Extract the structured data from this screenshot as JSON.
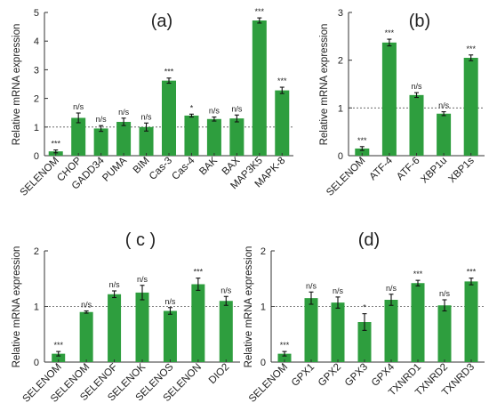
{
  "chart_data": [
    {
      "type": "bar",
      "panel_label": "(a)",
      "ylabel": "Relative mRNA expression",
      "ylim": [
        0,
        5
      ],
      "yticks": [
        0,
        1,
        2,
        3,
        4,
        5
      ],
      "reference_line": 1,
      "bar_color": "#2e9e3e",
      "categories": [
        "SELENOM",
        "CHOP",
        "GADD34",
        "PUMA",
        "BIM",
        "Cas-3",
        "Cas-4",
        "BAK",
        "BAX",
        "MAP3K5",
        "MAPK-8"
      ],
      "values": [
        0.15,
        1.32,
        0.95,
        1.18,
        1.0,
        2.62,
        1.4,
        1.28,
        1.3,
        4.72,
        2.28
      ],
      "errors": [
        0.05,
        0.17,
        0.1,
        0.13,
        0.14,
        0.09,
        0.05,
        0.07,
        0.12,
        0.09,
        0.11
      ],
      "significance": [
        "***",
        "n/s",
        "n/s",
        "n/s",
        "n/s",
        "***",
        "*",
        "n/s",
        "n/s",
        "***",
        "***"
      ]
    },
    {
      "type": "bar",
      "panel_label": "(b)",
      "ylabel": "Relative mRNA expression",
      "ylim": [
        0,
        3
      ],
      "yticks": [
        0,
        1,
        2,
        3
      ],
      "reference_line": 1,
      "bar_color": "#2e9e3e",
      "categories": [
        "SELENOM",
        "ATF-4",
        "ATF-6",
        "XBP1u",
        "XBP1s"
      ],
      "values": [
        0.15,
        2.37,
        1.27,
        0.88,
        2.05
      ],
      "errors": [
        0.04,
        0.07,
        0.05,
        0.04,
        0.06
      ],
      "significance": [
        "***",
        "***",
        "n/s",
        "n/s",
        "***"
      ]
    },
    {
      "type": "bar",
      "panel_label": "( c )",
      "ylabel": "Relative mRNA expression",
      "ylim": [
        0,
        2
      ],
      "yticks": [
        0,
        1,
        2
      ],
      "reference_line": 1,
      "bar_color": "#2e9e3e",
      "categories": [
        "SELENOM",
        "SELENOM",
        "SELENOF",
        "SELENOK",
        "SELENOS",
        "SELENON",
        "DIO2"
      ],
      "values": [
        0.15,
        0.9,
        1.22,
        1.25,
        0.92,
        1.4,
        1.1
      ],
      "errors": [
        0.04,
        0.02,
        0.06,
        0.13,
        0.06,
        0.11,
        0.08
      ],
      "significance": [
        "***",
        "n/s",
        "n/s",
        "n/s",
        "n/s",
        "***",
        "n/s"
      ]
    },
    {
      "type": "bar",
      "panel_label": "(d)",
      "ylabel": "Relative mRNA expression",
      "ylim": [
        0,
        2
      ],
      "yticks": [
        0,
        1,
        2
      ],
      "reference_line": 1,
      "bar_color": "#2e9e3e",
      "categories": [
        "SELENOM",
        "GPX1",
        "GPX2",
        "GPX3",
        "GPX4",
        "TXNRD1",
        "TXNRD2",
        "TXNRD3"
      ],
      "values": [
        0.15,
        1.15,
        1.07,
        0.72,
        1.12,
        1.42,
        1.02,
        1.45
      ],
      "errors": [
        0.04,
        0.11,
        0.1,
        0.15,
        0.1,
        0.05,
        0.1,
        0.06
      ],
      "significance": [
        "***",
        "n/s",
        "n/s",
        "*",
        "n/s",
        "***",
        "n/s",
        "***"
      ]
    }
  ]
}
